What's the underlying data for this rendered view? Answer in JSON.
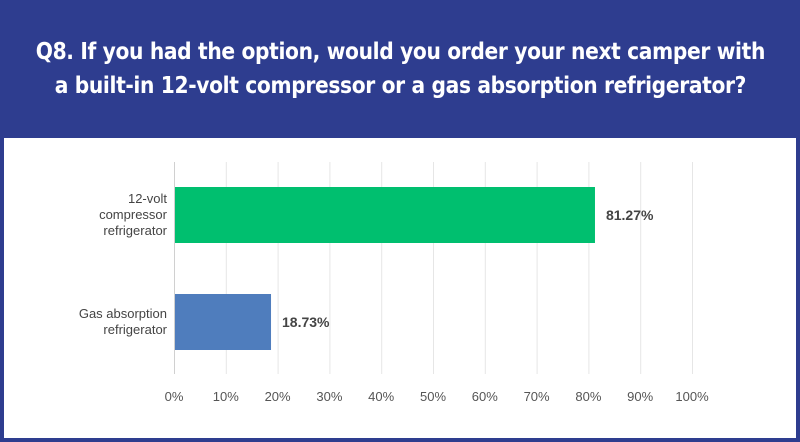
{
  "header": {
    "question_lines": [
      "Q8. If you had the option, would you order your next camper with",
      "a built-in 12-volt compressor or a gas absorption refrigerator?"
    ]
  },
  "colors": {
    "header_background": "#2e3d8f",
    "panel_background": "#ffffff",
    "grid": "#e6e6e6"
  },
  "chart_data": {
    "type": "bar",
    "orientation": "horizontal",
    "categories": [
      [
        "12-volt",
        "compressor",
        "refrigerator"
      ],
      [
        "Gas absorption",
        "refrigerator"
      ]
    ],
    "values": [
      81.27,
      18.73
    ],
    "value_labels": [
      "81.27%",
      "18.73%"
    ],
    "bar_colors": [
      "#00bf6f",
      "#4f7dbd"
    ],
    "xlim": [
      0,
      100
    ],
    "xticks": [
      0,
      10,
      20,
      30,
      40,
      50,
      60,
      70,
      80,
      90,
      100
    ],
    "xtick_labels": [
      "0%",
      "10%",
      "20%",
      "30%",
      "40%",
      "50%",
      "60%",
      "70%",
      "80%",
      "90%",
      "100%"
    ],
    "grid": true
  }
}
